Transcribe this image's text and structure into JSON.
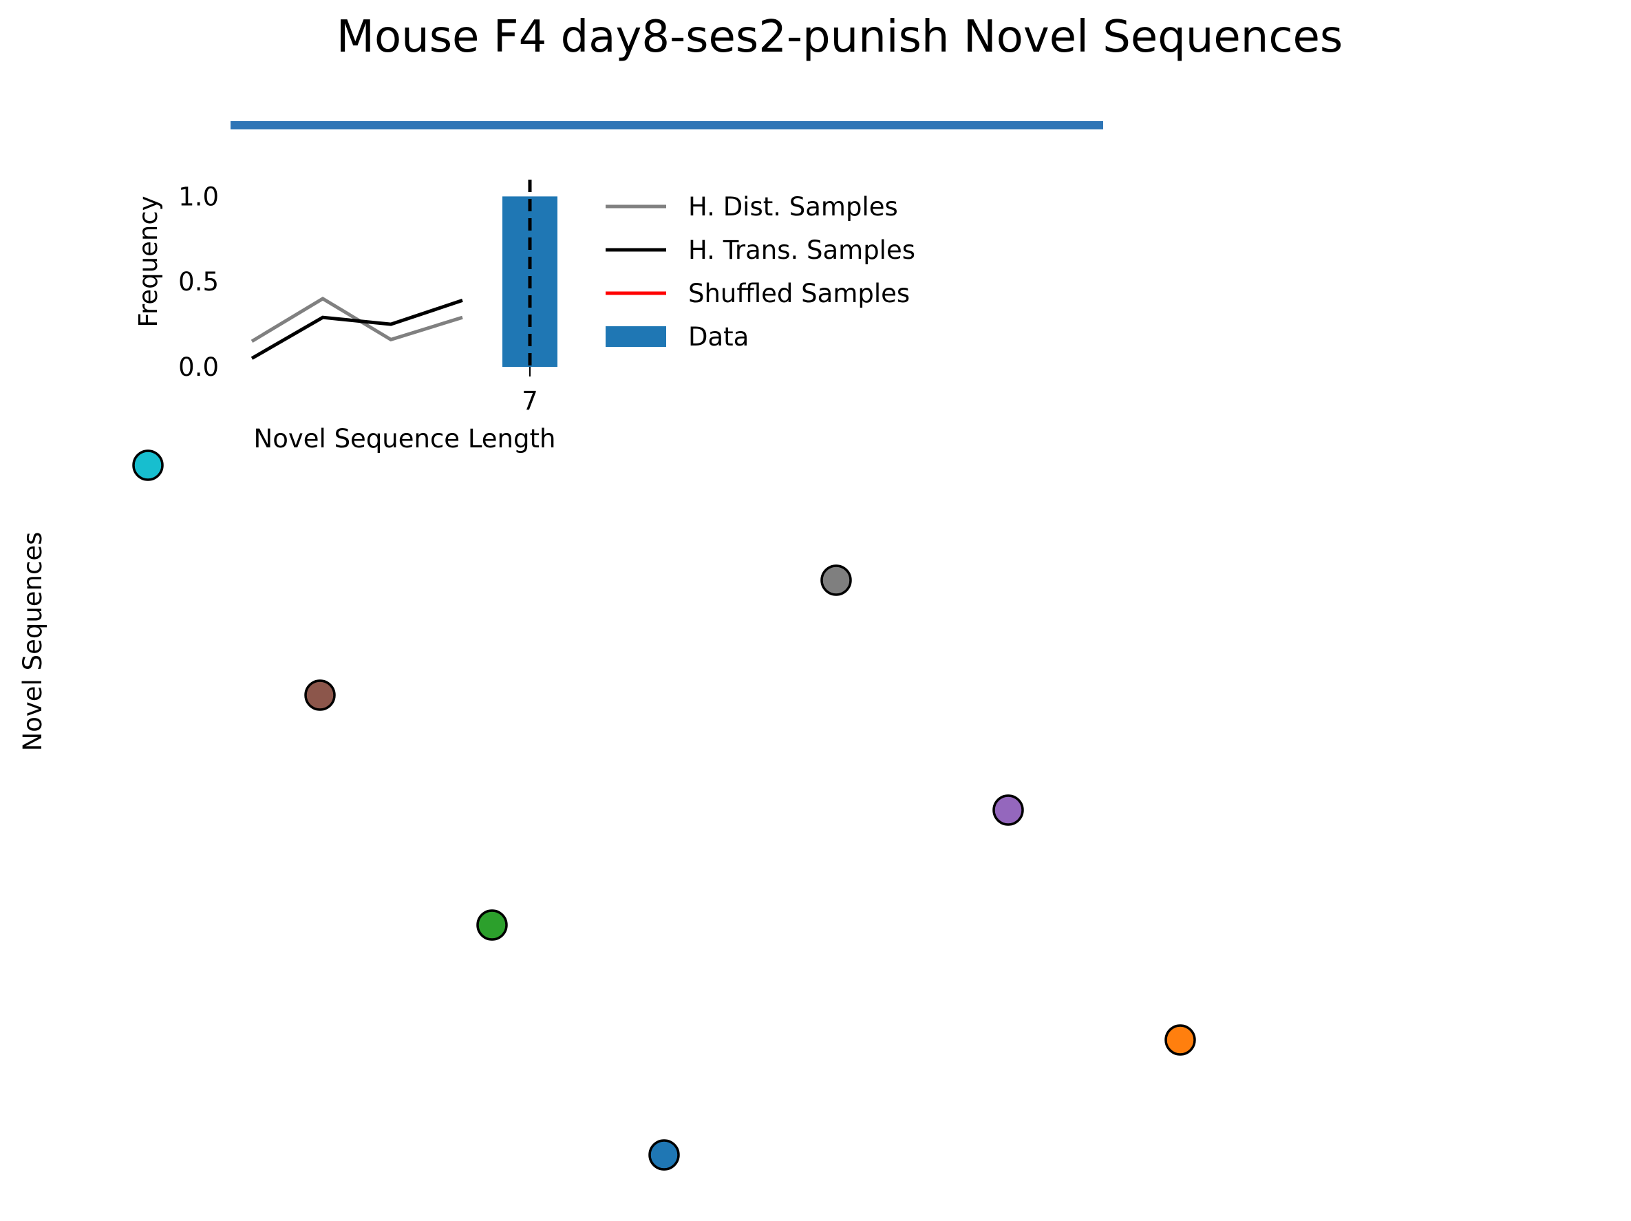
{
  "title": "Mouse F4 day8-ses2-punish Novel Sequences",
  "chart_data": [
    {
      "type": "line",
      "panel": "inset",
      "xlabel": "Novel Sequence Length",
      "ylabel": "Frequency",
      "ylim": [
        0,
        1.05
      ],
      "yticks": [
        "0.0",
        "0.5",
        "1.0"
      ],
      "series": [
        {
          "name": "H. Dist. Samples",
          "color": "#808080",
          "values": [
            0.15,
            0.4,
            0.16,
            0.29
          ]
        },
        {
          "name": "H. Trans. Samples",
          "color": "#000000",
          "values": [
            0.05,
            0.29,
            0.25,
            0.39
          ]
        },
        {
          "name": "Shuffled Samples",
          "color": "#ff0000",
          "values": []
        }
      ],
      "bar": {
        "name": "Data",
        "color": "#1f77b4",
        "category": "7",
        "value": 1.0
      },
      "vline": {
        "style": "dashed",
        "color": "#000000",
        "at": "7"
      },
      "legend": [
        "H. Dist. Samples",
        "H. Trans. Samples",
        "Shuffled Samples",
        "Data"
      ],
      "legend_placement": "right"
    },
    {
      "type": "scatter",
      "panel": "main",
      "ylabel": "Novel Sequences",
      "axes": "hidden",
      "points": [
        {
          "x": 0.5,
          "y": 7.0,
          "color": "#17becf"
        },
        {
          "x": 1.5,
          "y": 5.0,
          "color": "#8c564b"
        },
        {
          "x": 2.5,
          "y": 3.0,
          "color": "#2ca02c"
        },
        {
          "x": 3.5,
          "y": 1.0,
          "color": "#1f77b4"
        },
        {
          "x": 4.5,
          "y": 6.0,
          "color": "#7f7f7f"
        },
        {
          "x": 5.5,
          "y": 4.0,
          "color": "#9467bd"
        },
        {
          "x": 6.5,
          "y": 2.0,
          "color": "#ff7f0e"
        }
      ],
      "top_bar_color": "#2e75b6"
    }
  ]
}
